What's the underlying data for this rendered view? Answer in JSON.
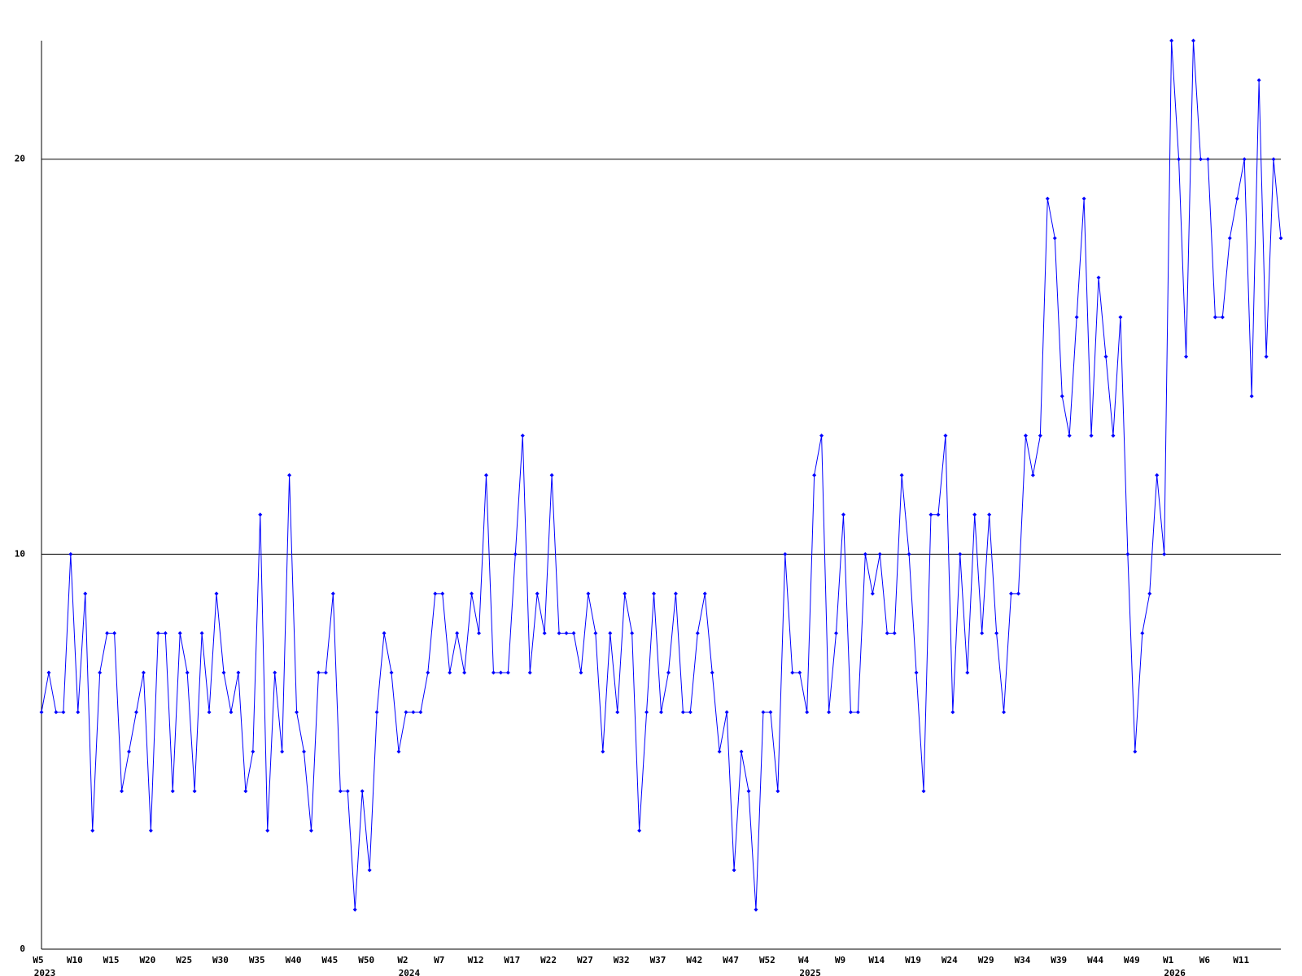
{
  "chart_data": {
    "type": "line",
    "categories": [
      "W5",
      null,
      null,
      null,
      null,
      "W10",
      null,
      null,
      null,
      null,
      "W15",
      null,
      null,
      null,
      null,
      "W20",
      null,
      null,
      null,
      null,
      "W25",
      null,
      null,
      null,
      null,
      "W30",
      null,
      null,
      null,
      null,
      "W35",
      null,
      null,
      null,
      null,
      "W40",
      null,
      null,
      null,
      null,
      "W45",
      null,
      null,
      null,
      null,
      "W50",
      null,
      null,
      null,
      null,
      "W2",
      null,
      null,
      null,
      null,
      "W7",
      null,
      null,
      null,
      null,
      "W12",
      null,
      null,
      null,
      null,
      "W17",
      null,
      null,
      null,
      null,
      "W22",
      null,
      null,
      null,
      null,
      "W27",
      null,
      null,
      null,
      null,
      "W32",
      null,
      null,
      null,
      null,
      "W37",
      null,
      null,
      null,
      null,
      "W42",
      null,
      null,
      null,
      null,
      "W47",
      null,
      null,
      null,
      null,
      "W52",
      null,
      null,
      null,
      null,
      "W4",
      null,
      null,
      null,
      null,
      "W9",
      null,
      null,
      null,
      null,
      "W14",
      null,
      null,
      null,
      null,
      "W19",
      null,
      null,
      null,
      null,
      "W24",
      null,
      null,
      null,
      null,
      "W29",
      null,
      null,
      null,
      null,
      "W34",
      null,
      null,
      null,
      null,
      "W39",
      null,
      null,
      null,
      null,
      "W44",
      null,
      null,
      null,
      null,
      "W49",
      null,
      null,
      null,
      null,
      "W1",
      null,
      null,
      null,
      null,
      "W6",
      null,
      null,
      null,
      null,
      "W11",
      null,
      null,
      null,
      null,
      null
    ],
    "category_years": [
      "2023",
      null,
      null,
      null,
      null,
      null,
      null,
      null,
      null,
      null,
      null,
      null,
      null,
      null,
      null,
      null,
      null,
      null,
      null,
      null,
      null,
      null,
      null,
      null,
      null,
      null,
      null,
      null,
      null,
      null,
      null,
      null,
      null,
      null,
      null,
      null,
      null,
      null,
      null,
      null,
      null,
      null,
      null,
      null,
      null,
      null,
      null,
      null,
      null,
      null,
      "2024",
      null,
      null,
      null,
      null,
      null,
      null,
      null,
      null,
      null,
      null,
      null,
      null,
      null,
      null,
      null,
      null,
      null,
      null,
      null,
      null,
      null,
      null,
      null,
      null,
      null,
      null,
      null,
      null,
      null,
      null,
      null,
      null,
      null,
      null,
      null,
      null,
      null,
      null,
      null,
      null,
      null,
      null,
      null,
      null,
      null,
      null,
      null,
      null,
      null,
      null,
      null,
      null,
      null,
      null,
      "2025",
      null,
      null,
      null,
      null,
      null,
      null,
      null,
      null,
      null,
      null,
      null,
      null,
      null,
      null,
      null,
      null,
      null,
      null,
      null,
      null,
      null,
      null,
      null,
      null,
      null,
      null,
      null,
      null,
      null,
      null,
      null,
      null,
      null,
      null,
      null,
      null,
      null,
      null,
      null,
      null,
      null,
      null,
      null,
      null,
      null,
      null,
      null,
      null,
      null,
      "2026",
      null,
      null,
      null,
      null,
      null,
      null,
      null,
      null,
      null,
      null,
      null,
      null,
      null,
      null,
      null
    ],
    "values": [
      6,
      7,
      6,
      6,
      10,
      6,
      9,
      3,
      7,
      8,
      8,
      4,
      5,
      6,
      7,
      3,
      8,
      8,
      4,
      8,
      7,
      4,
      8,
      6,
      9,
      7,
      6,
      7,
      4,
      5,
      11,
      3,
      7,
      5,
      12,
      6,
      5,
      3,
      7,
      7,
      9,
      4,
      4,
      1,
      4,
      2,
      6,
      8,
      7,
      5,
      6,
      6,
      6,
      7,
      9,
      9,
      7,
      8,
      7,
      9,
      8,
      12,
      7,
      7,
      7,
      10,
      13,
      7,
      9,
      8,
      12,
      8,
      8,
      8,
      7,
      9,
      8,
      5,
      8,
      6,
      9,
      8,
      3,
      6,
      9,
      6,
      7,
      9,
      6,
      6,
      8,
      9,
      7,
      5,
      6,
      2,
      5,
      4,
      1,
      6,
      6,
      4,
      10,
      7,
      7,
      6,
      12,
      13,
      6,
      8,
      11,
      6,
      6,
      10,
      9,
      10,
      8,
      8,
      12,
      10,
      7,
      4,
      11,
      11,
      13,
      6,
      10,
      7,
      11,
      8,
      11,
      8,
      6,
      9,
      9,
      13,
      12,
      13,
      19,
      18,
      14,
      13,
      16,
      19,
      13,
      17,
      15,
      13,
      16,
      10,
      5,
      8,
      9,
      12,
      10,
      23,
      20,
      15,
      23,
      20,
      20,
      16,
      16,
      18,
      19,
      20,
      14,
      22,
      15,
      20,
      18
    ],
    "color": "#0000ff",
    "ylim": [
      0,
      23
    ],
    "yticks": [
      0,
      10,
      20
    ],
    "grid": true
  }
}
